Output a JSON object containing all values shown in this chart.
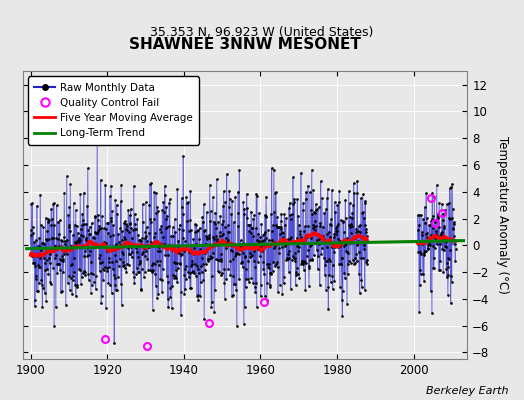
{
  "title": "SHAWNEE 3NNW MESONET",
  "subtitle": "35.353 N, 96.923 W (United States)",
  "ylabel": "Temperature Anomaly (°C)",
  "credit": "Berkeley Earth",
  "ylim": [
    -8.5,
    13.0
  ],
  "xlim": [
    1898,
    2014
  ],
  "xticks": [
    1900,
    1920,
    1940,
    1960,
    1980,
    2000
  ],
  "yticks": [
    -8,
    -6,
    -4,
    -2,
    0,
    2,
    4,
    6,
    8,
    10,
    12
  ],
  "bg_color": "#e8e8e8",
  "plot_bg_color": "#e8e8e8",
  "raw_line_color": "#2222cc",
  "ma_color": "red",
  "trend_color": "green",
  "qc_fail_color": "magenta",
  "seed": 42,
  "start_year": 1900,
  "end_year": 1988,
  "post_start": 2001,
  "post_end": 2011,
  "trend_x": [
    1899,
    2013
  ],
  "trend_y": [
    -0.25,
    0.35
  ],
  "qc_fail_points": [
    {
      "year": 1930.5,
      "val": -7.5
    },
    {
      "year": 1919.5,
      "val": -7.0
    },
    {
      "year": 1946.5,
      "val": -5.8
    },
    {
      "year": 1961.0,
      "val": -4.2
    },
    {
      "year": 2004.5,
      "val": 3.5
    },
    {
      "year": 2007.5,
      "val": 2.4
    },
    {
      "year": 2005.5,
      "val": 1.7
    }
  ],
  "noise_scale_pre": 2.2,
  "noise_scale_post": 1.8
}
